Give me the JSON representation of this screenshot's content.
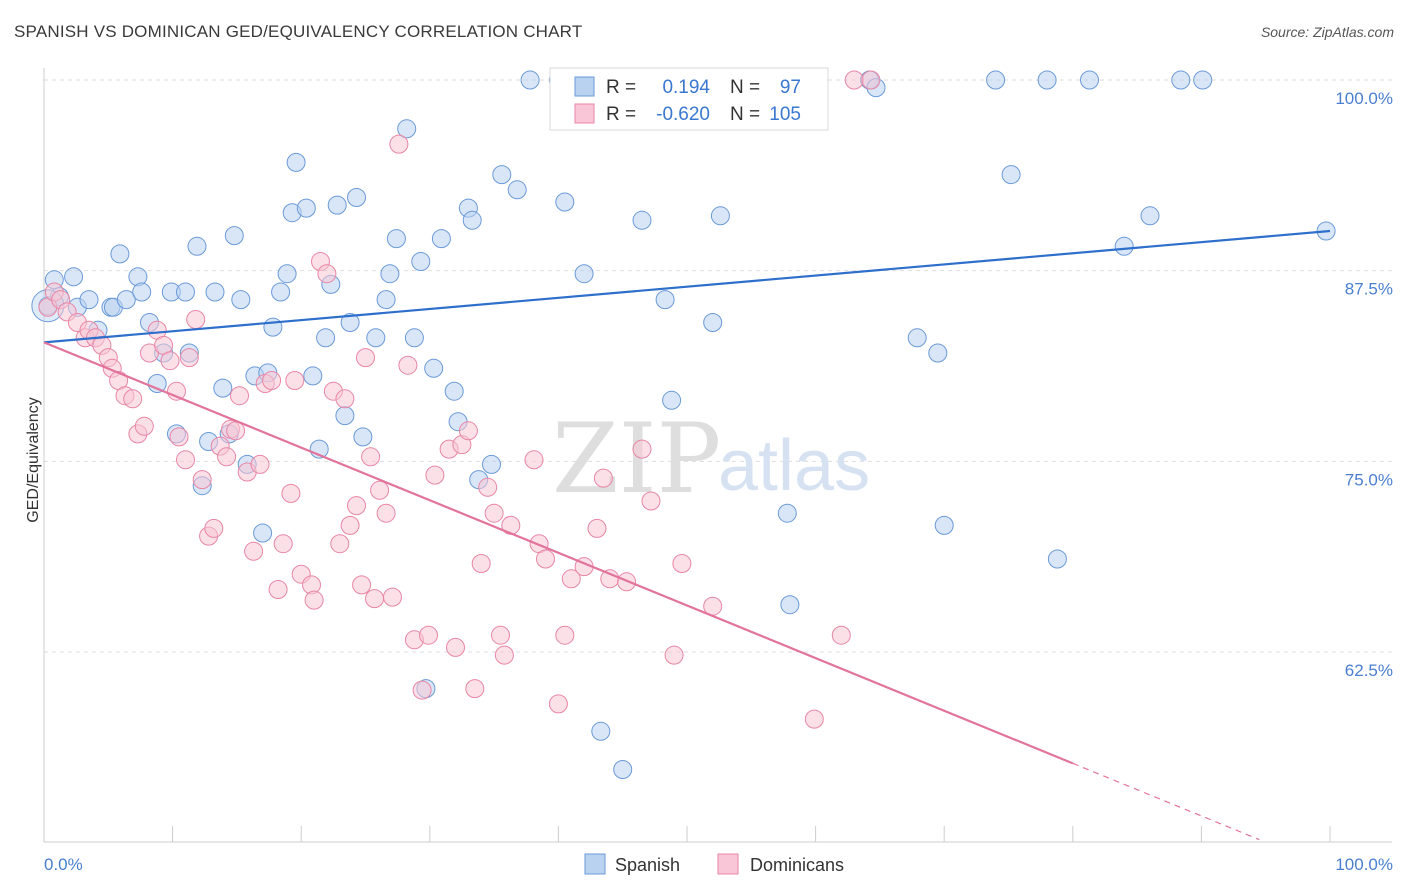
{
  "header": {
    "title": "SPANISH VS DOMINICAN GED/EQUIVALENCY CORRELATION CHART",
    "source": "Source: ZipAtlas.com"
  },
  "watermark": {
    "zip": "ZIP",
    "atlas": "atlas"
  },
  "legend_box": {
    "spanish": {
      "r_label": "R =",
      "r_value": "0.194",
      "n_label": "N =",
      "n_value": "97"
    },
    "dominican": {
      "r_label": "R =",
      "r_value": "-0.620",
      "n_label": "N =",
      "n_value": "105"
    }
  },
  "bottom_legend": {
    "spanish": "Spanish",
    "dominican": "Dominicans"
  },
  "colors": {
    "spanish_fill": "#b9d2f0",
    "spanish_stroke": "#6b9ad8",
    "spanish_line": "#2e6fcc",
    "dominican_fill": "#f8c6d6",
    "dominican_stroke": "#e886a6",
    "dominican_line": "#e2739b",
    "grid": "#dddddd",
    "axis_text": "#4a7fcf"
  },
  "chart_data": {
    "type": "scatter",
    "title": "SPANISH VS DOMINICAN GED/EQUIVALENCY CORRELATION CHART",
    "xlabel": "",
    "ylabel": "GED/Equivalency",
    "xlim": [
      0,
      100
    ],
    "ylim": [
      51,
      102
    ],
    "x_tick_labels": [
      "0.0%",
      "100.0%"
    ],
    "y_ticks": [
      62.5,
      75.0,
      87.5,
      100.0
    ],
    "y_tick_labels": [
      "62.5%",
      "75.0%",
      "87.5%",
      "100.0%"
    ],
    "grid": "horizontal dashed",
    "legend_position": "top-center",
    "series": [
      {
        "name": "Spanish",
        "trend": {
          "x": [
            0,
            100
          ],
          "y": [
            82.8,
            90.1
          ]
        },
        "points": [
          [
            0.3,
            85.2
          ],
          [
            0.8,
            86.9
          ],
          [
            1.2,
            85.8
          ],
          [
            2.3,
            87.1
          ],
          [
            2.6,
            85.1
          ],
          [
            3.5,
            85.6
          ],
          [
            4.2,
            83.6
          ],
          [
            5.2,
            85.1
          ],
          [
            5.4,
            85.1
          ],
          [
            5.9,
            88.6
          ],
          [
            6.4,
            85.6
          ],
          [
            7.3,
            87.1
          ],
          [
            7.6,
            86.1
          ],
          [
            8.2,
            84.1
          ],
          [
            8.8,
            80.1
          ],
          [
            9.3,
            82.1
          ],
          [
            9.9,
            86.1
          ],
          [
            10.3,
            76.8
          ],
          [
            11.0,
            86.1
          ],
          [
            11.3,
            82.1
          ],
          [
            11.9,
            89.1
          ],
          [
            12.3,
            73.4
          ],
          [
            12.8,
            76.3
          ],
          [
            13.3,
            86.1
          ],
          [
            13.9,
            79.8
          ],
          [
            14.4,
            76.8
          ],
          [
            14.8,
            89.8
          ],
          [
            15.3,
            85.6
          ],
          [
            15.8,
            74.8
          ],
          [
            16.4,
            80.6
          ],
          [
            17.0,
            70.3
          ],
          [
            17.4,
            80.8
          ],
          [
            17.8,
            83.8
          ],
          [
            18.4,
            86.1
          ],
          [
            18.9,
            87.3
          ],
          [
            19.3,
            91.3
          ],
          [
            19.6,
            94.6
          ],
          [
            20.4,
            91.6
          ],
          [
            20.9,
            80.6
          ],
          [
            21.4,
            75.8
          ],
          [
            21.9,
            83.1
          ],
          [
            22.3,
            86.6
          ],
          [
            22.8,
            91.8
          ],
          [
            23.4,
            78.0
          ],
          [
            23.8,
            84.1
          ],
          [
            24.3,
            92.3
          ],
          [
            24.8,
            76.6
          ],
          [
            25.8,
            83.1
          ],
          [
            26.6,
            85.6
          ],
          [
            26.9,
            87.3
          ],
          [
            27.4,
            89.6
          ],
          [
            28.2,
            96.8
          ],
          [
            28.8,
            83.1
          ],
          [
            29.3,
            88.1
          ],
          [
            29.7,
            60.1
          ],
          [
            30.3,
            81.1
          ],
          [
            30.9,
            89.6
          ],
          [
            31.9,
            79.6
          ],
          [
            32.2,
            77.6
          ],
          [
            33.0,
            91.6
          ],
          [
            33.3,
            90.8
          ],
          [
            33.8,
            73.8
          ],
          [
            34.8,
            74.8
          ],
          [
            35.6,
            93.8
          ],
          [
            36.8,
            92.8
          ],
          [
            37.8,
            100.0
          ],
          [
            40.0,
            100.0
          ],
          [
            40.5,
            92.0
          ],
          [
            42.0,
            87.3
          ],
          [
            43.3,
            57.3
          ],
          [
            45.0,
            54.8
          ],
          [
            46.5,
            90.8
          ],
          [
            48.3,
            85.6
          ],
          [
            48.8,
            79.0
          ],
          [
            52.0,
            84.1
          ],
          [
            52.6,
            91.1
          ],
          [
            55.1,
            100.0
          ],
          [
            57.8,
            71.6
          ],
          [
            58.0,
            65.6
          ],
          [
            60.0,
            100.0
          ],
          [
            64.2,
            100.0
          ],
          [
            64.7,
            99.5
          ],
          [
            67.9,
            83.1
          ],
          [
            69.5,
            82.1
          ],
          [
            70.0,
            70.8
          ],
          [
            74.0,
            100.0
          ],
          [
            75.2,
            93.8
          ],
          [
            78.0,
            100.0
          ],
          [
            78.8,
            68.6
          ],
          [
            81.3,
            100.0
          ],
          [
            84.0,
            89.1
          ],
          [
            86.0,
            91.1
          ],
          [
            88.4,
            100.0
          ],
          [
            90.1,
            100.0
          ],
          [
            99.7,
            90.1
          ]
        ]
      },
      {
        "name": "Dominicans",
        "trend": {
          "x": [
            0,
            80
          ],
          "y": [
            82.8,
            55.2
          ]
        },
        "trend_dashed": {
          "x": [
            80,
            94.5
          ],
          "y": [
            55.2,
            50.2
          ]
        },
        "points": [
          [
            0.3,
            85.1
          ],
          [
            0.8,
            86.1
          ],
          [
            1.3,
            85.6
          ],
          [
            1.8,
            84.8
          ],
          [
            2.6,
            84.1
          ],
          [
            3.2,
            83.1
          ],
          [
            3.5,
            83.6
          ],
          [
            4.0,
            83.1
          ],
          [
            4.5,
            82.6
          ],
          [
            5.0,
            81.8
          ],
          [
            5.3,
            81.1
          ],
          [
            5.8,
            80.3
          ],
          [
            6.3,
            79.3
          ],
          [
            6.9,
            79.1
          ],
          [
            7.3,
            76.8
          ],
          [
            7.8,
            77.3
          ],
          [
            8.2,
            82.1
          ],
          [
            8.8,
            83.6
          ],
          [
            9.3,
            82.6
          ],
          [
            9.8,
            81.6
          ],
          [
            10.3,
            79.6
          ],
          [
            10.5,
            76.6
          ],
          [
            11.0,
            75.1
          ],
          [
            11.3,
            81.8
          ],
          [
            11.8,
            84.3
          ],
          [
            12.3,
            73.8
          ],
          [
            12.8,
            70.1
          ],
          [
            13.2,
            70.6
          ],
          [
            13.7,
            76.0
          ],
          [
            14.2,
            75.3
          ],
          [
            14.5,
            77.1
          ],
          [
            14.9,
            77.0
          ],
          [
            15.2,
            79.3
          ],
          [
            15.8,
            74.3
          ],
          [
            16.3,
            69.1
          ],
          [
            16.8,
            74.8
          ],
          [
            17.2,
            80.1
          ],
          [
            17.7,
            80.3
          ],
          [
            18.2,
            66.6
          ],
          [
            18.6,
            69.6
          ],
          [
            19.2,
            72.9
          ],
          [
            19.5,
            80.3
          ],
          [
            20.0,
            67.6
          ],
          [
            20.8,
            66.9
          ],
          [
            21.0,
            65.9
          ],
          [
            21.5,
            88.1
          ],
          [
            22.0,
            87.3
          ],
          [
            22.5,
            79.6
          ],
          [
            23.0,
            69.6
          ],
          [
            23.4,
            79.1
          ],
          [
            23.8,
            70.8
          ],
          [
            24.3,
            72.1
          ],
          [
            24.7,
            66.9
          ],
          [
            25.0,
            81.8
          ],
          [
            25.4,
            75.3
          ],
          [
            25.7,
            66.0
          ],
          [
            26.1,
            73.1
          ],
          [
            26.6,
            71.6
          ],
          [
            27.1,
            66.1
          ],
          [
            27.6,
            95.8
          ],
          [
            28.3,
            81.3
          ],
          [
            28.8,
            63.3
          ],
          [
            29.4,
            60.0
          ],
          [
            29.9,
            63.6
          ],
          [
            30.4,
            74.1
          ],
          [
            31.5,
            75.8
          ],
          [
            32.0,
            62.8
          ],
          [
            32.5,
            76.1
          ],
          [
            33.0,
            77.0
          ],
          [
            33.5,
            60.1
          ],
          [
            34.0,
            68.3
          ],
          [
            34.5,
            73.3
          ],
          [
            35.0,
            71.6
          ],
          [
            35.5,
            63.6
          ],
          [
            35.8,
            62.3
          ],
          [
            36.3,
            70.8
          ],
          [
            38.1,
            75.1
          ],
          [
            38.5,
            69.6
          ],
          [
            39.0,
            68.6
          ],
          [
            40.0,
            59.1
          ],
          [
            40.5,
            63.6
          ],
          [
            41.0,
            67.3
          ],
          [
            42.0,
            68.1
          ],
          [
            43.0,
            70.6
          ],
          [
            43.5,
            73.9
          ],
          [
            44.0,
            67.3
          ],
          [
            45.3,
            67.1
          ],
          [
            46.5,
            75.8
          ],
          [
            47.2,
            72.4
          ],
          [
            49.0,
            62.3
          ],
          [
            49.6,
            68.3
          ],
          [
            52.0,
            65.5
          ],
          [
            58.0,
            100.0
          ],
          [
            59.5,
            100.0
          ],
          [
            59.9,
            58.1
          ],
          [
            62.0,
            63.6
          ],
          [
            63.0,
            100.0
          ],
          [
            64.3,
            100.0
          ]
        ]
      }
    ]
  }
}
